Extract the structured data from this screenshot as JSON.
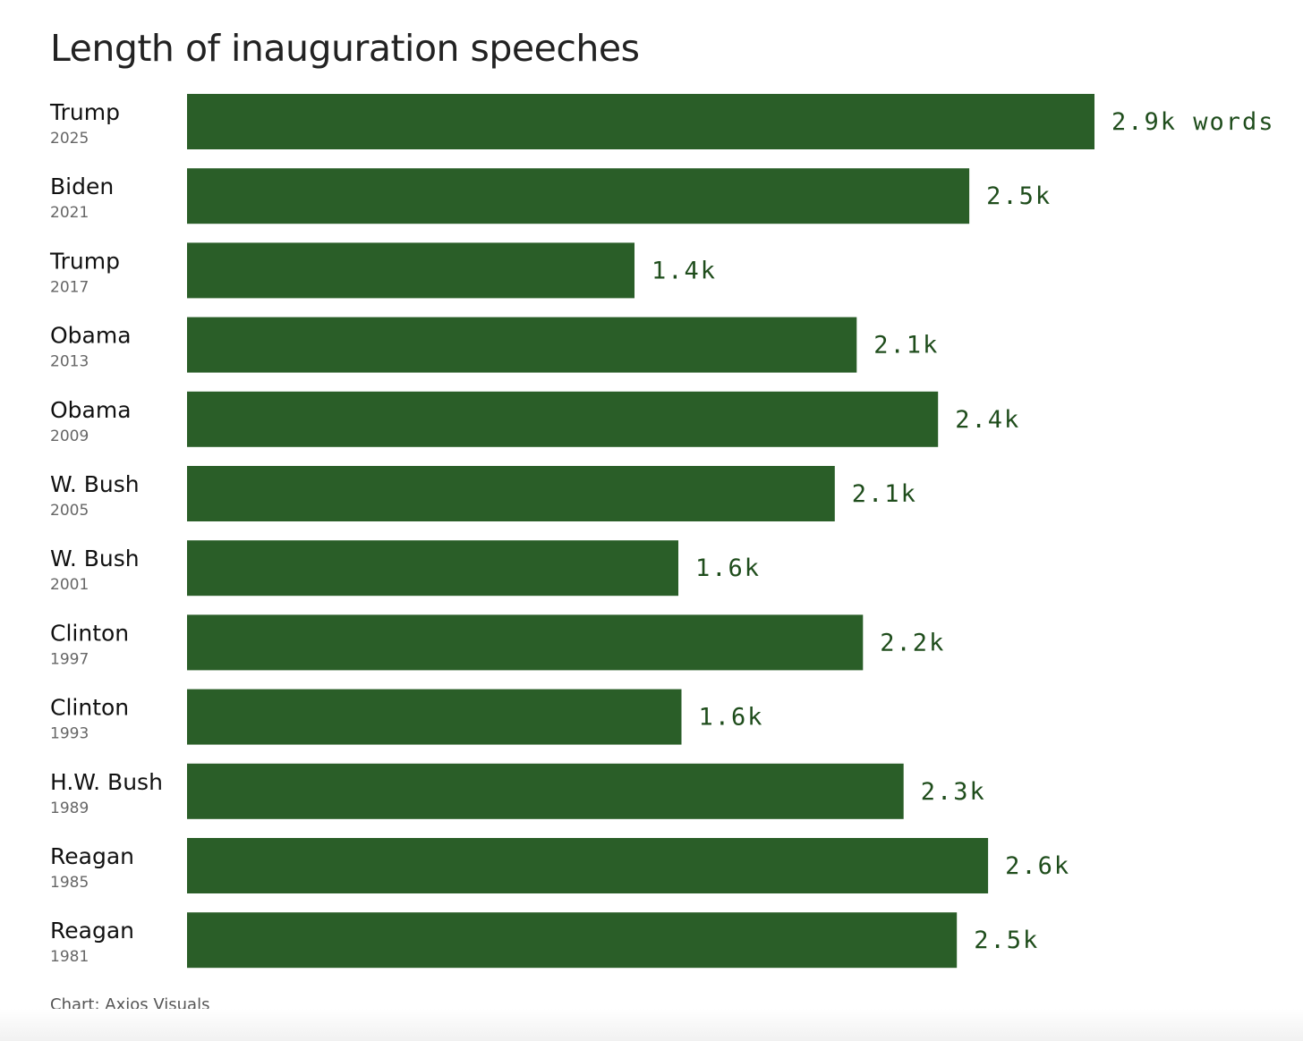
{
  "chart_data": {
    "type": "bar",
    "orientation": "horizontal",
    "title": "Length of inauguration speeches",
    "source": "Chart: Axios Visuals",
    "categories": [
      {
        "name": "Trump",
        "year": "2025"
      },
      {
        "name": "Biden",
        "year": "2021"
      },
      {
        "name": "Trump",
        "year": "2017"
      },
      {
        "name": "Obama",
        "year": "2013"
      },
      {
        "name": "Obama",
        "year": "2009"
      },
      {
        "name": "W. Bush",
        "year": "2005"
      },
      {
        "name": "W. Bush",
        "year": "2001"
      },
      {
        "name": "Clinton",
        "year": "1997"
      },
      {
        "name": "Clinton",
        "year": "1993"
      },
      {
        "name": "H.W. Bush",
        "year": "1989"
      },
      {
        "name": "Reagan",
        "year": "1985"
      },
      {
        "name": "Reagan",
        "year": "1981"
      }
    ],
    "values": [
      2900,
      2500,
      1430,
      2140,
      2400,
      2070,
      1570,
      2160,
      1580,
      2290,
      2560,
      2460
    ],
    "value_labels": [
      "2.9k words",
      "2.5k",
      "1.4k",
      "2.1k",
      "2.4k",
      "2.1k",
      "1.6k",
      "2.2k",
      "1.6k",
      "2.3k",
      "2.6k",
      "2.5k"
    ],
    "unit": "words",
    "xlim": [
      0,
      2900
    ],
    "grid": false,
    "legend": "none",
    "colors": {
      "bar": "#2a5e28",
      "value_label": "#1f4d1c",
      "name_label": "#111111",
      "year_label": "#666666"
    }
  }
}
